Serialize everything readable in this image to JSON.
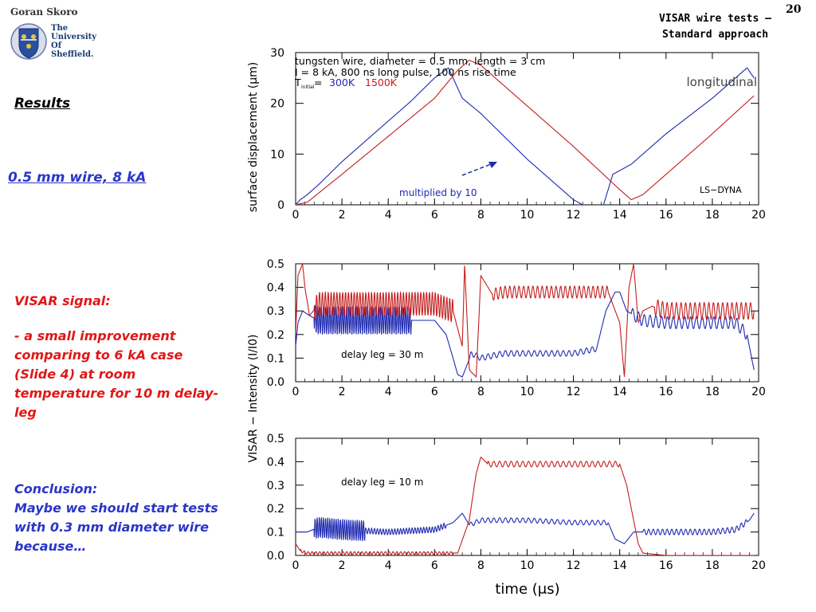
{
  "header": {
    "author": "Goran Skoro",
    "university_lines": [
      "The",
      "University",
      "Of",
      "Sheffield."
    ],
    "slide_title_lines": [
      "VISAR wire tests –",
      "Standard approach"
    ],
    "slide_number": "20"
  },
  "left_panel": {
    "results": "Results",
    "wire_caption": "0.5 mm wire, 8 kA",
    "visar_head": "VISAR signal:",
    "visar_body": "- a small improvement comparing to 6 kA case (Slide 4) at room temperature for 10 m delay-leg",
    "conclusion_head": "Conclusion:",
    "conclusion_body": "Maybe we should start tests with 0.3 mm diameter wire because…"
  },
  "colors": {
    "blue": "#1f2ab0",
    "red": "#c41e1e",
    "text_blue": "#2a36c8",
    "text_red": "#e01818"
  },
  "chart_data": [
    {
      "type": "line",
      "title": "longitudinal",
      "ylabel": "surface displacement (μm)",
      "xlabel": "",
      "xlim": [
        0,
        20
      ],
      "ylim": [
        0,
        30
      ],
      "xticks": [
        0,
        2,
        4,
        6,
        8,
        10,
        12,
        14,
        16,
        18,
        20
      ],
      "yticks": [
        0,
        10,
        20,
        30
      ],
      "annotations": [
        "tungsten wire, diameter = 0.5 mm, length = 3 cm",
        "I = 8 kA, 800 ns long pulse, 100 ns rise time",
        "T",
        "initial",
        "=",
        "300K",
        "1500K",
        "multiplied by 10",
        "LS−DYNA"
      ],
      "series": [
        {
          "name": "300K",
          "color": "blue",
          "x": [
            0,
            0.2,
            0.5,
            1,
            2,
            3,
            4,
            5,
            6,
            6.6,
            7.2,
            8,
            10,
            12,
            12.8,
            13.3,
            13.7,
            14.5,
            16,
            18,
            19.5,
            19.8
          ],
          "y": [
            0,
            1,
            2,
            4,
            8.5,
            12.5,
            16.5,
            20.5,
            25,
            27,
            21,
            18,
            9,
            1,
            -1,
            0,
            6,
            8,
            14,
            21,
            27,
            25
          ]
        },
        {
          "name": "1500K",
          "color": "red",
          "x": [
            0,
            0.5,
            2,
            4,
            6,
            7,
            7.5,
            8,
            10,
            12,
            14,
            14.5,
            15,
            16,
            18,
            19.8
          ],
          "y": [
            0,
            0.5,
            6,
            13.5,
            21,
            26.5,
            28.5,
            27.5,
            19.5,
            11.5,
            3,
            1,
            2,
            6,
            14,
            21.5
          ]
        }
      ]
    },
    {
      "type": "line",
      "ylabel": "",
      "xlim": [
        0,
        20
      ],
      "ylim": [
        0,
        0.5
      ],
      "xticks": [
        0,
        2,
        4,
        6,
        8,
        10,
        12,
        14,
        16,
        18,
        20
      ],
      "yticks": [
        0,
        0.1,
        0.2,
        0.3,
        0.4,
        0.5
      ],
      "annotations": [
        "delay leg = 30 m"
      ],
      "series": [
        {
          "name": "300K",
          "color": "blue",
          "x": [
            0,
            0.1,
            0.3,
            0.6,
            1,
            2,
            3,
            4,
            5,
            6,
            6.5,
            6.8,
            7,
            7.2,
            7.6,
            8,
            9,
            10,
            11,
            12,
            13,
            13.4,
            13.8,
            14,
            14.3,
            15,
            16,
            17,
            18,
            19,
            19.5,
            19.8
          ],
          "y": [
            0.15,
            0.25,
            0.3,
            0.28,
            0.26,
            0.26,
            0.26,
            0.26,
            0.26,
            0.26,
            0.2,
            0.1,
            0.03,
            0.02,
            0.12,
            0.1,
            0.12,
            0.12,
            0.12,
            0.12,
            0.14,
            0.3,
            0.38,
            0.38,
            0.3,
            0.26,
            0.25,
            0.25,
            0.25,
            0.25,
            0.2,
            0.05
          ],
          "osc": [
            [
              0.8,
              5,
              0.06,
              11
            ],
            [
              7.5,
              13,
              0.012,
              4
            ],
            [
              14.5,
              19.5,
              0.025,
              4
            ]
          ]
        },
        {
          "name": "1500K",
          "color": "red",
          "x": [
            0,
            0.1,
            0.3,
            0.4,
            0.6,
            1,
            2,
            4,
            6,
            6.8,
            7.2,
            7.3,
            7.5,
            7.8,
            8,
            8.5,
            9,
            10,
            12,
            13.5,
            14,
            14.2,
            14.4,
            14.6,
            14.8,
            15,
            15.4,
            16,
            18,
            19.8
          ],
          "y": [
            0.2,
            0.45,
            0.5,
            0.4,
            0.28,
            0.33,
            0.33,
            0.33,
            0.33,
            0.3,
            0.15,
            0.5,
            0.05,
            0.02,
            0.45,
            0.37,
            0.38,
            0.38,
            0.38,
            0.38,
            0.25,
            0.02,
            0.4,
            0.5,
            0.25,
            0.3,
            0.32,
            0.3,
            0.3,
            0.3
          ],
          "osc": [
            [
              0.8,
              6.8,
              0.05,
              8
            ],
            [
              8.5,
              13.5,
              0.025,
              5
            ],
            [
              15.5,
              19.8,
              0.035,
              5
            ]
          ]
        }
      ]
    },
    {
      "type": "line",
      "ylabel": "VISAR − Intensity (I/I0)",
      "xlabel": "time (μs)",
      "xlim": [
        0,
        20
      ],
      "ylim": [
        0,
        0.5
      ],
      "xticks": [
        0,
        2,
        4,
        6,
        8,
        10,
        12,
        14,
        16,
        18,
        20
      ],
      "yticks": [
        0,
        0.1,
        0.2,
        0.3,
        0.4,
        0.5
      ],
      "annotations": [
        "delay leg = 10 m"
      ],
      "series": [
        {
          "name": "300K",
          "color": "blue",
          "x": [
            0,
            0.5,
            1,
            2,
            4,
            6,
            6.8,
            7.2,
            7.5,
            8,
            10,
            12,
            13.5,
            13.8,
            14.2,
            14.6,
            15,
            16,
            18,
            19,
            19.6,
            19.8
          ],
          "y": [
            0.1,
            0.1,
            0.12,
            0.11,
            0.1,
            0.11,
            0.14,
            0.18,
            0.13,
            0.15,
            0.15,
            0.14,
            0.14,
            0.07,
            0.05,
            0.1,
            0.1,
            0.1,
            0.1,
            0.11,
            0.15,
            0.18
          ],
          "osc": [
            [
              0.8,
              3,
              0.045,
              11
            ],
            [
              3,
              6.5,
              0.012,
              8
            ],
            [
              7.5,
              13.5,
              0.01,
              4
            ],
            [
              15,
              19.5,
              0.012,
              5
            ]
          ]
        },
        {
          "name": "1500K",
          "color": "red",
          "x": [
            0,
            0.2,
            0.5,
            1,
            4,
            7,
            7.5,
            7.8,
            8,
            8.3,
            10,
            12,
            14,
            14.3,
            14.8,
            15,
            16,
            19.8
          ],
          "y": [
            0.05,
            0.02,
            0.01,
            0.01,
            0.01,
            0.01,
            0.15,
            0.35,
            0.42,
            0.39,
            0.39,
            0.39,
            0.39,
            0.3,
            0.05,
            0.01,
            0.0,
            0.0
          ],
          "osc": [
            [
              0.2,
              6.8,
              0.006,
              6
            ],
            [
              8.3,
              14,
              0.012,
              4
            ]
          ]
        }
      ]
    }
  ]
}
